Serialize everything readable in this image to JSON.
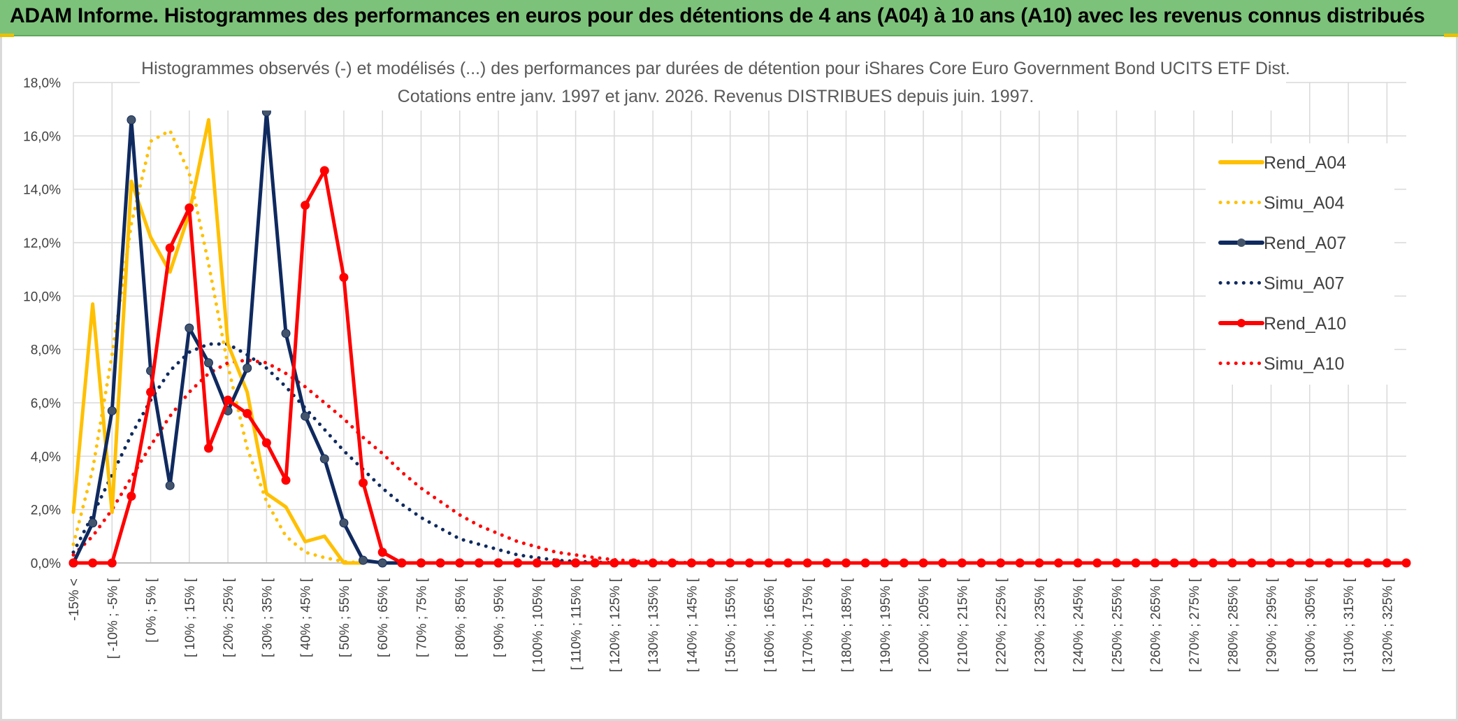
{
  "header": {
    "banner_title": "ADAM Informe. Histogrammes des performances en euros pour des détentions de 4 ans (A04) à 10 ans (A10) avec les revenus connus distribués"
  },
  "colors": {
    "banner": "#7dc27a",
    "A04": "#ffc000",
    "A07": "#0f2a5f",
    "A10": "#ff0000",
    "grid": "#d9d9d9"
  },
  "chart_data": {
    "type": "line",
    "title_line1": "Histogrammes observés (-) et modélisés (...) des performances par durées de détention pour iShares Core Euro Government Bond UCITS ETF Dist.",
    "title_line2": "Cotations entre janv. 1997 et janv. 2026. Revenus DISTRIBUES depuis juin. 1997.",
    "ylim": [
      0,
      18
    ],
    "y_ticks": [
      "0,0%",
      "2,0%",
      "4,0%",
      "6,0%",
      "8,0%",
      "10,0%",
      "12,0%",
      "14,0%",
      "16,0%",
      "18,0%"
    ],
    "x_count": 70,
    "x_tick_labels": [
      "-15% <",
      "[ -10% ; -5% [",
      "[ 0% ; 5% [",
      "[ 10% ; 15% [",
      "[ 20% ; 25% [",
      "[ 30% ; 35% [",
      "[ 40% ; 45% [",
      "[ 50% ; 55% [",
      "[ 60% ; 65% [",
      "[ 70% ; 75% [",
      "[ 80% ; 85% [",
      "[ 90% ; 95% [",
      "[ 100% ; 105% [",
      "[ 110% ; 115% [",
      "[ 120% ; 125% [",
      "[ 130% ; 135% [",
      "[ 140% ; 145% [",
      "[ 150% ; 155% [",
      "[ 160% ; 165% [",
      "[ 170% ; 175% [",
      "[ 180% ; 185% [",
      "[ 190% ; 195% [",
      "[ 200% ; 205% [",
      "[ 210% ; 215% [",
      "[ 220% ; 225% [",
      "[ 230% ; 235% [",
      "[ 240% ; 245% [",
      "[ 250% ; 255% [",
      "[ 260% ; 265% [",
      "[ 270% ; 275% [",
      "[ 280% ; 285% [",
      "[ 290% ; 295% [",
      "[ 300% ; 305% [",
      "[ 310% ; 315% [",
      "[ 320% ; 325% ["
    ],
    "series": [
      {
        "name": "Rend_A04",
        "style": "solid",
        "color": "#ffc000",
        "markers": false,
        "values": [
          1.9,
          9.7,
          1.9,
          14.3,
          12.2,
          10.9,
          13.1,
          16.6,
          8.2,
          6.4,
          2.6,
          2.1,
          0.8,
          1.0,
          0.0,
          0.0
        ]
      },
      {
        "name": "Simu_A04",
        "style": "dotted",
        "color": "#ffc000",
        "markers": false,
        "values": [
          0.7,
          3.5,
          7.8,
          12.7,
          15.8,
          16.2,
          14.6,
          11.2,
          7.4,
          4.3,
          2.3,
          1.0,
          0.4,
          0.2,
          0.05,
          0.0
        ]
      },
      {
        "name": "Rend_A07",
        "style": "solid",
        "color": "#0f2a5f",
        "markers": true,
        "values": [
          0.0,
          1.5,
          5.7,
          16.6,
          7.2,
          2.9,
          8.8,
          7.5,
          5.7,
          7.3,
          16.9,
          8.6,
          5.5,
          3.9,
          1.5,
          0.1,
          0.0,
          0.0,
          0.0,
          0.0,
          0.0,
          0.0,
          0.0,
          0.0,
          0.0,
          0.0,
          0.0,
          0.0
        ]
      },
      {
        "name": "Simu_A07",
        "style": "dotted",
        "color": "#0f2a5f",
        "markers": false,
        "values": [
          0.4,
          1.8,
          3.3,
          4.8,
          6.1,
          7.2,
          7.9,
          8.2,
          8.2,
          7.8,
          7.3,
          6.6,
          5.8,
          5.0,
          4.2,
          3.5,
          2.8,
          2.2,
          1.7,
          1.3,
          0.9,
          0.7,
          0.5,
          0.3,
          0.2,
          0.1,
          0.06,
          0.03,
          0.01,
          0.0
        ]
      },
      {
        "name": "Rend_A10",
        "style": "solid",
        "color": "#ff0000",
        "markers": true,
        "values": [
          0.0,
          0.0,
          0.0,
          2.5,
          6.4,
          11.8,
          13.3,
          4.3,
          6.1,
          5.6,
          4.5,
          3.1,
          13.4,
          14.7,
          10.7,
          3.0,
          0.4,
          0.0,
          0.0,
          0.0,
          0.0,
          0.0,
          0.0,
          0.0,
          0.0,
          0.0,
          0.0,
          0.0,
          0.0,
          0.0,
          0.0,
          0.0,
          0.0,
          0.0,
          0.0,
          0.0,
          0.0,
          0.0,
          0.0,
          0.0,
          0.0,
          0.0,
          0.0,
          0.0,
          0.0,
          0.0,
          0.0,
          0.0,
          0.0,
          0.0,
          0.0,
          0.0,
          0.0,
          0.0,
          0.0,
          0.0,
          0.0,
          0.0,
          0.0,
          0.0,
          0.0,
          0.0,
          0.0,
          0.0,
          0.0,
          0.0,
          0.0,
          0.0,
          0.0,
          0.0
        ]
      },
      {
        "name": "Simu_A10",
        "style": "dotted",
        "color": "#ff0000",
        "markers": false,
        "values": [
          0.3,
          1.0,
          2.0,
          3.2,
          4.4,
          5.5,
          6.4,
          7.1,
          7.5,
          7.6,
          7.5,
          7.1,
          6.6,
          6.0,
          5.4,
          4.7,
          4.1,
          3.4,
          2.8,
          2.3,
          1.8,
          1.4,
          1.1,
          0.8,
          0.6,
          0.4,
          0.3,
          0.2,
          0.12,
          0.07,
          0.04,
          0.02,
          0.01,
          0.0
        ]
      }
    ],
    "legend": [
      "Rend_A04",
      "Simu_A04",
      "Rend_A07",
      "Simu_A07",
      "Rend_A10",
      "Simu_A10"
    ]
  }
}
